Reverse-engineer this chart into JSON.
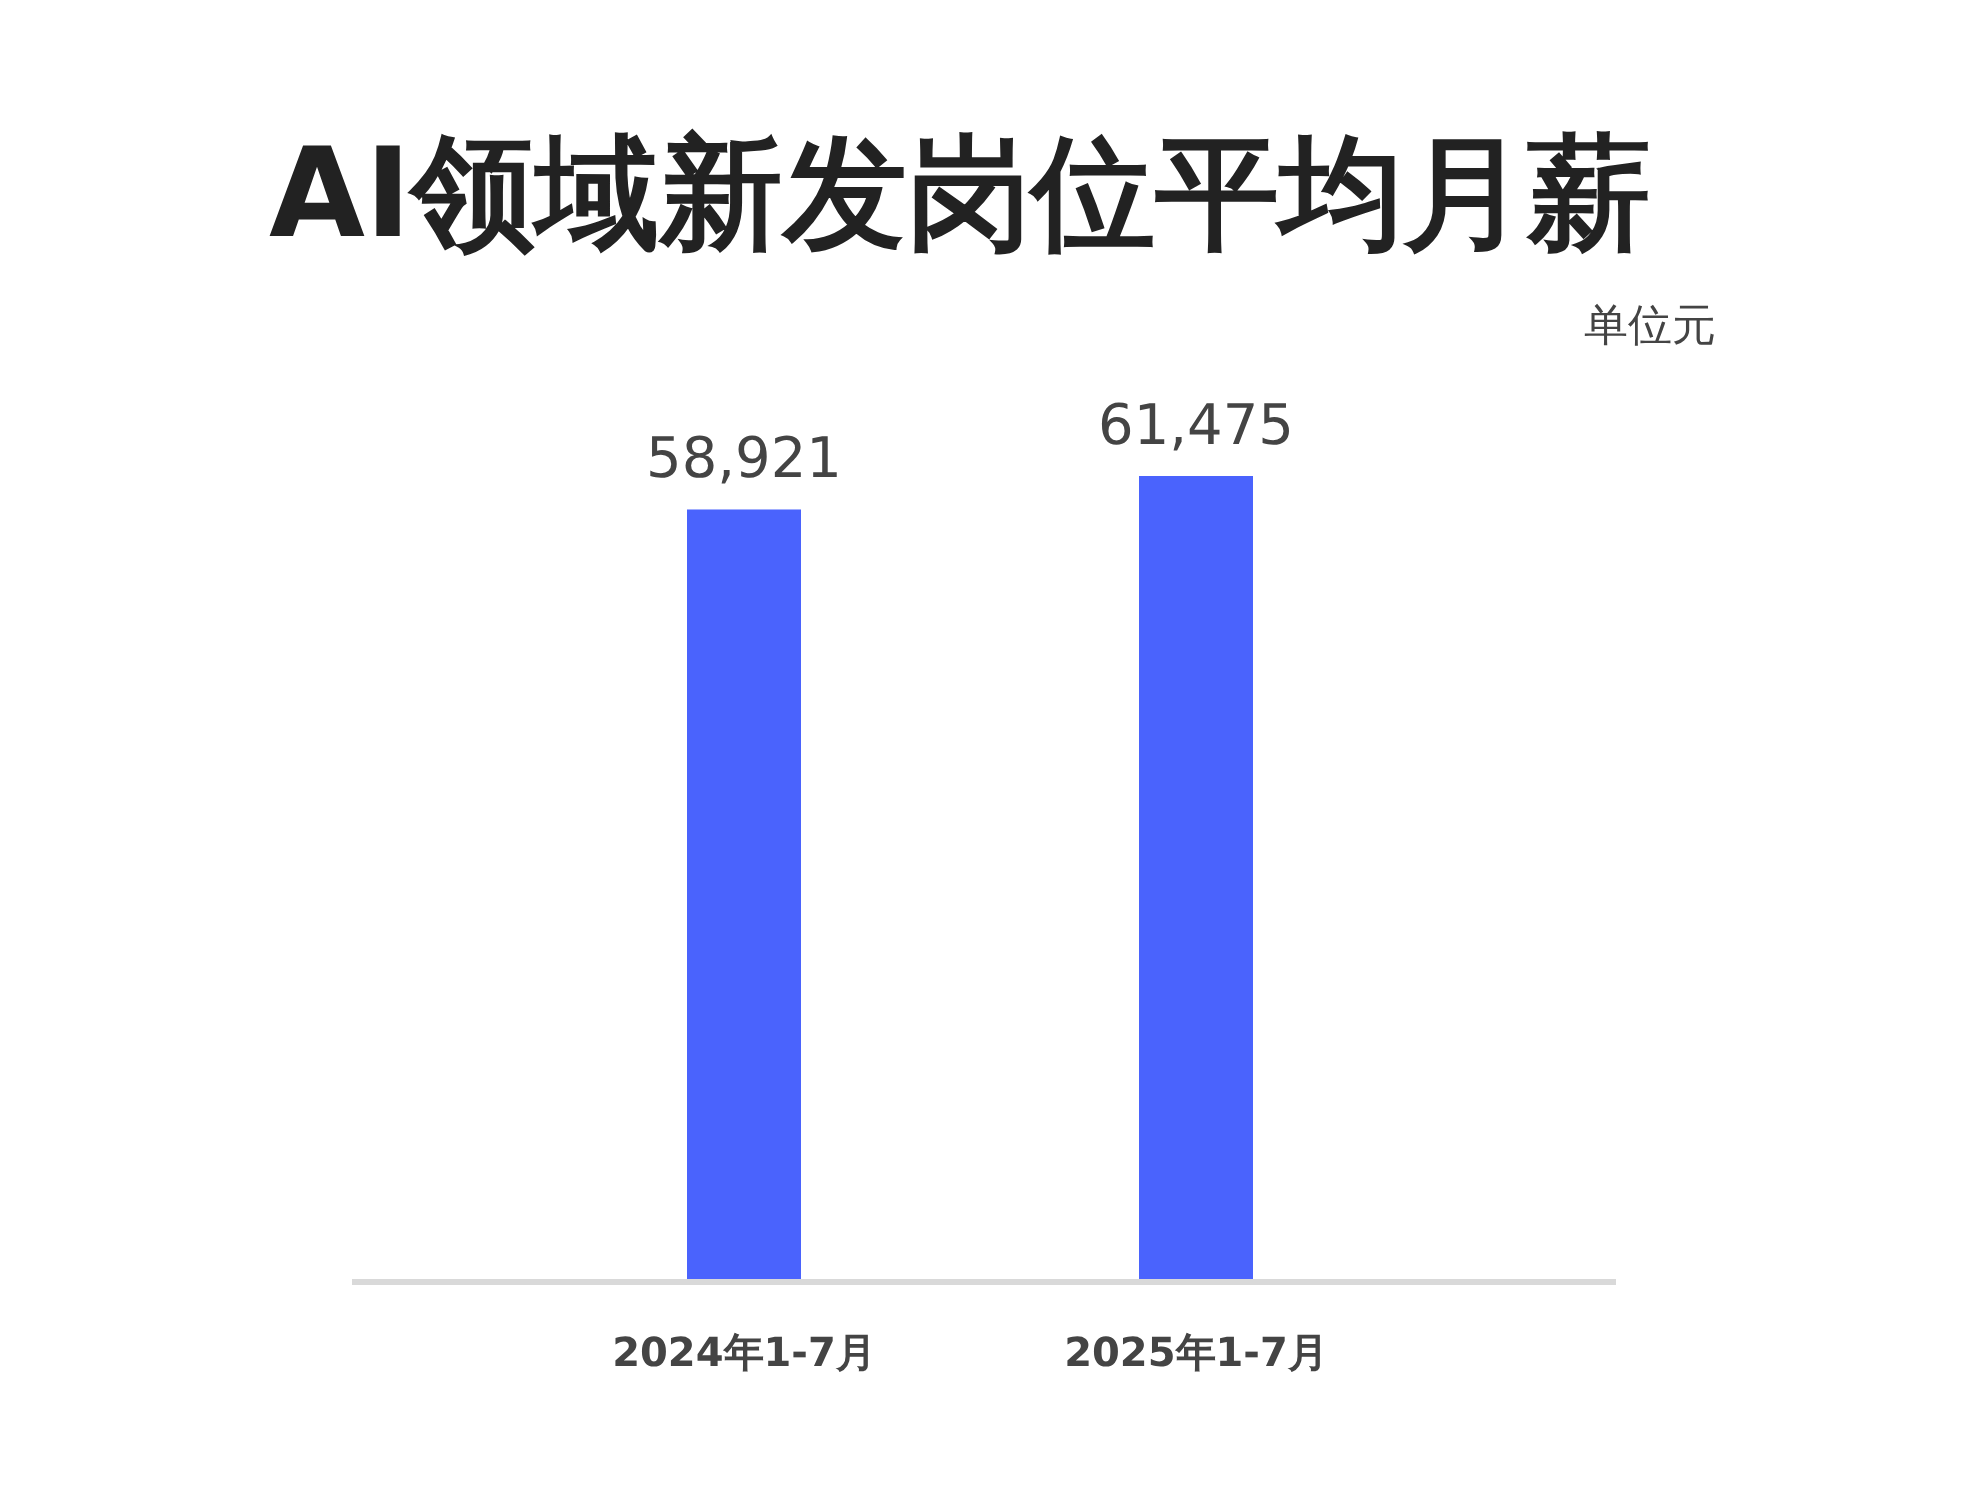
{
  "chart_data": {
    "type": "bar",
    "title": "AI领域新发岗位平均月薪",
    "ylabel": "单位元",
    "categories": [
      "2024年1-7月",
      "2025年1-7月"
    ],
    "values": [
      58921,
      61475
    ],
    "value_labels": [
      "58,921",
      "61,475"
    ],
    "color": "#4a63fd"
  }
}
